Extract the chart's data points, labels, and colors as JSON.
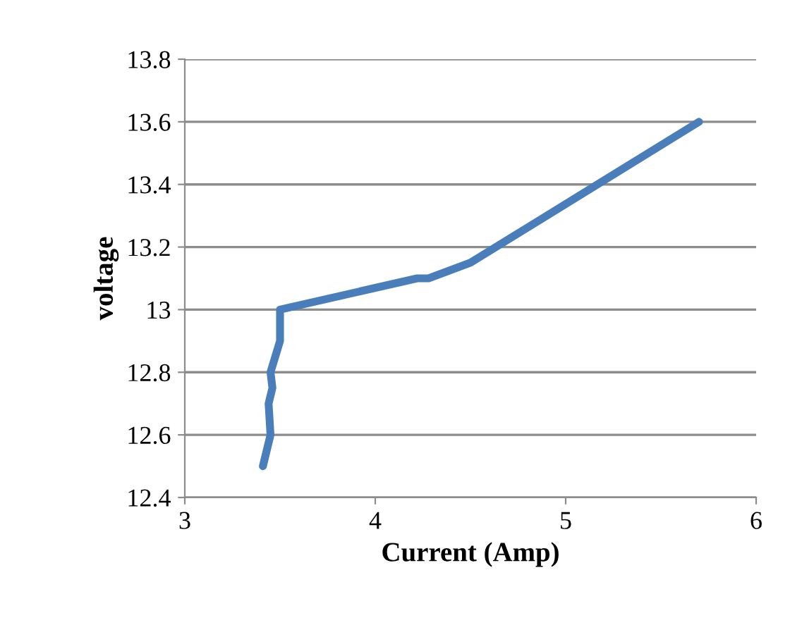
{
  "chart_data": {
    "type": "line",
    "xlabel": "Current (Amp)",
    "ylabel": "voltage",
    "series": [
      {
        "color": "#4a7ebb",
        "x": [
          3.41,
          3.45,
          3.44,
          3.46,
          3.45,
          3.5,
          3.5,
          4.22,
          4.28,
          4.5,
          5.7
        ],
        "values": [
          12.5,
          12.6,
          12.7,
          12.75,
          12.8,
          12.9,
          13.0,
          13.1,
          13.1,
          13.15,
          13.6
        ]
      }
    ],
    "xlim": [
      3,
      6
    ],
    "xticks": [
      3,
      4,
      5,
      6
    ],
    "ylim": [
      12.4,
      13.8
    ],
    "yticks": [
      {
        "value": 12.4,
        "label": "12.4"
      },
      {
        "value": 12.6,
        "label": "12.6"
      },
      {
        "value": 12.8,
        "label": "12.8"
      },
      {
        "value": 13.0,
        "label": "13"
      },
      {
        "value": 13.2,
        "label": "13.2"
      },
      {
        "value": 13.4,
        "label": "13.4"
      },
      {
        "value": 13.6,
        "label": "13.6"
      },
      {
        "value": 13.8,
        "label": "13.8"
      }
    ],
    "grid": "y",
    "legend": false,
    "marker": "none",
    "line_style": "solid"
  }
}
